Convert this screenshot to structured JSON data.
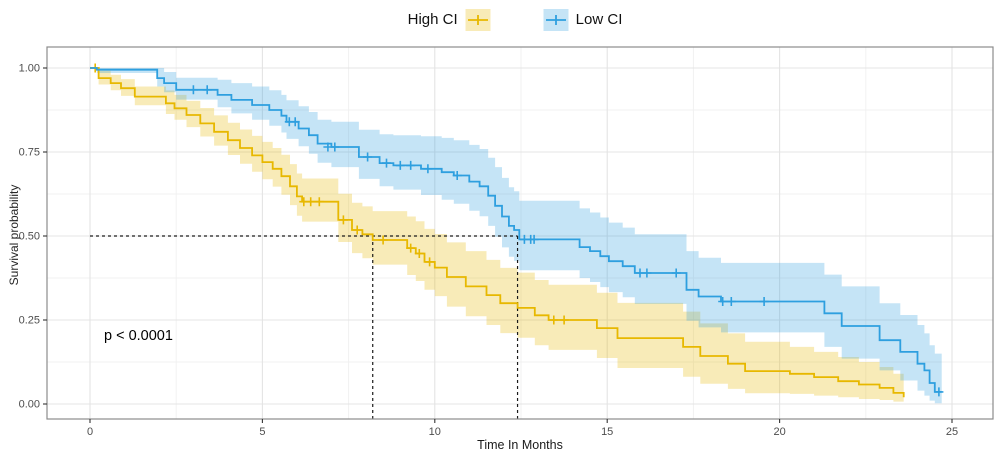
{
  "legend": {
    "items": [
      {
        "label": "High CI",
        "key_after_label": true
      },
      {
        "label": "Low CI",
        "key_after_label": false
      }
    ]
  },
  "annotations": {
    "p_value": "p < 0.0001"
  },
  "axes": {
    "x": {
      "label": "Time In Months",
      "range": [
        0,
        25
      ]
    },
    "y": {
      "label": "Survival probability",
      "range": [
        0,
        1
      ]
    }
  },
  "chart_data": {
    "type": "line",
    "subtype": "kaplan-meier-step",
    "title": "",
    "xlabel": "Time In Months",
    "ylabel": "Survival probability",
    "x_ticks": [
      {
        "v": 0,
        "label": "0"
      },
      {
        "v": 5,
        "label": "5"
      },
      {
        "v": 10,
        "label": "10"
      },
      {
        "v": 15,
        "label": "15"
      },
      {
        "v": 20,
        "label": "20"
      },
      {
        "v": 25,
        "label": "25"
      }
    ],
    "x_minor": [
      2.5,
      7.5,
      12.5,
      17.5,
      22.5
    ],
    "y_ticks": [
      {
        "v": 0,
        "label": "0.00"
      },
      {
        "v": 0.25,
        "label": "0.25"
      },
      {
        "v": 0.5,
        "label": "0.50"
      },
      {
        "v": 0.75,
        "label": "0.75"
      },
      {
        "v": 1,
        "label": "1.00"
      }
    ],
    "y_minor": [
      0.125,
      0.375,
      0.625,
      0.875
    ],
    "grid_major_color": "#e4e4e4",
    "grid_minor_color": "#f0f0f0",
    "panel_border_color": "#8c8c8c",
    "tick_mark_color": "#333333",
    "tick_label_color": "#4d4d4d",
    "median_lines": {
      "survival": 0.5,
      "times": [
        8.2,
        12.4
      ],
      "color": "#1a1a1a"
    },
    "series": [
      {
        "name": "High CI",
        "color": "#E7B800",
        "band_color": "rgba(231,184,0,0.28)",
        "median_time": 8.2,
        "points": [
          [
            0,
            1,
            1,
            1
          ],
          [
            0.25,
            0.97,
            0.951,
            0.992
          ],
          [
            0.6,
            0.955,
            0.934,
            0.98
          ],
          [
            0.9,
            0.94,
            0.917,
            0.967
          ],
          [
            1.3,
            0.915,
            0.889,
            0.945
          ],
          [
            2.2,
            0.895,
            0.863,
            0.933
          ],
          [
            2.45,
            0.88,
            0.846,
            0.92
          ],
          [
            2.8,
            0.86,
            0.824,
            0.902
          ],
          [
            3.2,
            0.835,
            0.796,
            0.881
          ],
          [
            3.6,
            0.81,
            0.769,
            0.859
          ],
          [
            4.0,
            0.785,
            0.741,
            0.837
          ],
          [
            4.35,
            0.762,
            0.715,
            0.817
          ],
          [
            4.7,
            0.74,
            0.691,
            0.798
          ],
          [
            5.0,
            0.72,
            0.669,
            0.78
          ],
          [
            5.3,
            0.7,
            0.647,
            0.762
          ],
          [
            5.55,
            0.678,
            0.623,
            0.742
          ],
          [
            5.8,
            0.648,
            0.592,
            0.714
          ],
          [
            6.0,
            0.618,
            0.56,
            0.686
          ],
          [
            6.15,
            0.602,
            0.543,
            0.671
          ],
          [
            7.2,
            0.548,
            0.482,
            0.626
          ],
          [
            7.6,
            0.518,
            0.449,
            0.599
          ],
          [
            7.9,
            0.505,
            0.434,
            0.588
          ],
          [
            8.2,
            0.488,
            0.415,
            0.574
          ],
          [
            9.2,
            0.464,
            0.384,
            0.558
          ],
          [
            9.45,
            0.448,
            0.366,
            0.544
          ],
          [
            9.7,
            0.423,
            0.34,
            0.521
          ],
          [
            10.0,
            0.406,
            0.321,
            0.506
          ],
          [
            10.35,
            0.378,
            0.29,
            0.481
          ],
          [
            10.9,
            0.35,
            0.261,
            0.455
          ],
          [
            11.5,
            0.324,
            0.235,
            0.429
          ],
          [
            11.9,
            0.3,
            0.211,
            0.405
          ],
          [
            12.4,
            0.286,
            0.197,
            0.391
          ],
          [
            12.9,
            0.264,
            0.175,
            0.369
          ],
          [
            13.3,
            0.25,
            0.161,
            0.355
          ],
          [
            14.7,
            0.226,
            0.137,
            0.331
          ],
          [
            15.3,
            0.196,
            0.107,
            0.301
          ],
          [
            17.2,
            0.17,
            0.081,
            0.275
          ],
          [
            17.7,
            0.143,
            0.06,
            0.24
          ],
          [
            18.5,
            0.12,
            0.045,
            0.21
          ],
          [
            19.0,
            0.098,
            0.032,
            0.185
          ],
          [
            20.3,
            0.09,
            0.03,
            0.17
          ],
          [
            21.0,
            0.08,
            0.025,
            0.155
          ],
          [
            21.7,
            0.068,
            0.02,
            0.14
          ],
          [
            22.3,
            0.058,
            0.015,
            0.125
          ],
          [
            22.9,
            0.048,
            0.012,
            0.11
          ],
          [
            23.3,
            0.033,
            0.007,
            0.09
          ],
          [
            23.6,
            0.02,
            0.004,
            0.07
          ]
        ],
        "censors": [
          [
            0.15,
            1.0
          ],
          [
            6.2,
            0.602
          ],
          [
            6.4,
            0.602
          ],
          [
            6.65,
            0.602
          ],
          [
            7.35,
            0.548
          ],
          [
            7.75,
            0.518
          ],
          [
            8.5,
            0.488
          ],
          [
            9.3,
            0.464
          ],
          [
            9.55,
            0.448
          ],
          [
            9.85,
            0.423
          ],
          [
            13.45,
            0.25
          ],
          [
            13.75,
            0.25
          ]
        ]
      },
      {
        "name": "Low CI",
        "color": "#2E9FDF",
        "band_color": "rgba(46,159,223,0.28)",
        "median_time": 12.4,
        "points": [
          [
            0,
            1,
            1,
            1
          ],
          [
            0.2,
            0.995,
            0.985,
            1
          ],
          [
            1.95,
            0.97,
            0.945,
            1
          ],
          [
            2.15,
            0.955,
            0.928,
            0.988
          ],
          [
            2.5,
            0.935,
            0.906,
            0.971
          ],
          [
            3.7,
            0.92,
            0.883,
            0.965
          ],
          [
            4.1,
            0.905,
            0.865,
            0.955
          ],
          [
            4.7,
            0.89,
            0.846,
            0.945
          ],
          [
            5.2,
            0.875,
            0.828,
            0.934
          ],
          [
            5.55,
            0.858,
            0.808,
            0.92
          ],
          [
            5.7,
            0.84,
            0.789,
            0.904
          ],
          [
            6.05,
            0.82,
            0.767,
            0.886
          ],
          [
            6.35,
            0.8,
            0.745,
            0.869
          ],
          [
            6.6,
            0.775,
            0.718,
            0.846
          ],
          [
            7.0,
            0.765,
            0.705,
            0.84
          ],
          [
            7.8,
            0.735,
            0.67,
            0.816
          ],
          [
            8.4,
            0.717,
            0.648,
            0.803
          ],
          [
            8.8,
            0.71,
            0.638,
            0.8
          ],
          [
            9.6,
            0.7,
            0.622,
            0.797
          ],
          [
            10.2,
            0.69,
            0.608,
            0.792
          ],
          [
            10.55,
            0.68,
            0.596,
            0.785
          ],
          [
            11.0,
            0.662,
            0.575,
            0.771
          ],
          [
            11.3,
            0.648,
            0.559,
            0.759
          ],
          [
            11.55,
            0.62,
            0.53,
            0.733
          ],
          [
            11.75,
            0.59,
            0.498,
            0.705
          ],
          [
            11.95,
            0.558,
            0.466,
            0.673
          ],
          [
            12.15,
            0.53,
            0.438,
            0.645
          ],
          [
            12.3,
            0.518,
            0.426,
            0.633
          ],
          [
            12.45,
            0.49,
            0.398,
            0.605
          ],
          [
            14.2,
            0.467,
            0.375,
            0.582
          ],
          [
            14.5,
            0.455,
            0.363,
            0.57
          ],
          [
            14.8,
            0.44,
            0.348,
            0.555
          ],
          [
            15.05,
            0.425,
            0.333,
            0.54
          ],
          [
            15.45,
            0.41,
            0.318,
            0.525
          ],
          [
            15.8,
            0.39,
            0.298,
            0.505
          ],
          [
            17.3,
            0.34,
            0.248,
            0.455
          ],
          [
            17.65,
            0.32,
            0.228,
            0.435
          ],
          [
            18.3,
            0.305,
            0.213,
            0.42
          ],
          [
            21.3,
            0.27,
            0.17,
            0.385
          ],
          [
            21.8,
            0.232,
            0.135,
            0.35
          ],
          [
            22.9,
            0.19,
            0.1,
            0.3
          ],
          [
            23.5,
            0.155,
            0.07,
            0.265
          ],
          [
            24.0,
            0.12,
            0.04,
            0.235
          ],
          [
            24.2,
            0.1,
            0.025,
            0.21
          ],
          [
            24.35,
            0.0625,
            0.01,
            0.175
          ],
          [
            24.5,
            0.036,
            0.002,
            0.15
          ],
          [
            24.7,
            0.036,
            0.002,
            0.15
          ]
        ],
        "censors": [
          [
            3.0,
            0.935
          ],
          [
            3.4,
            0.935
          ],
          [
            5.78,
            0.84
          ],
          [
            5.95,
            0.84
          ],
          [
            6.9,
            0.765
          ],
          [
            7.1,
            0.765
          ],
          [
            8.05,
            0.735
          ],
          [
            8.6,
            0.717
          ],
          [
            9.0,
            0.71
          ],
          [
            9.3,
            0.71
          ],
          [
            9.8,
            0.7
          ],
          [
            10.65,
            0.68
          ],
          [
            12.6,
            0.49
          ],
          [
            12.78,
            0.49
          ],
          [
            12.88,
            0.49
          ],
          [
            15.95,
            0.39
          ],
          [
            16.15,
            0.39
          ],
          [
            17.0,
            0.39
          ],
          [
            18.35,
            0.305
          ],
          [
            18.6,
            0.305
          ],
          [
            19.55,
            0.305
          ],
          [
            24.62,
            0.036
          ]
        ]
      }
    ]
  }
}
